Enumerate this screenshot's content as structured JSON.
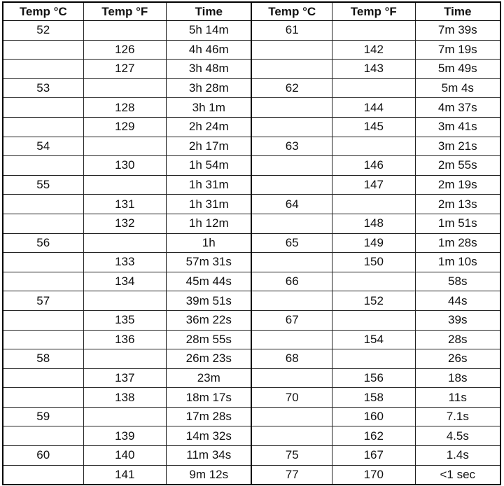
{
  "headers": [
    "Temp °C",
    "Temp °F",
    "Time",
    "Temp °C",
    "Temp °F",
    "Time"
  ],
  "rows": [
    [
      "52",
      "",
      "5h 14m",
      "61",
      "",
      "7m 39s"
    ],
    [
      "",
      "126",
      "4h 46m",
      "",
      "142",
      "7m 19s"
    ],
    [
      "",
      "127",
      "3h 48m",
      "",
      "143",
      "5m 49s"
    ],
    [
      "53",
      "",
      "3h 28m",
      "62",
      "",
      "5m 4s"
    ],
    [
      "",
      "128",
      "3h 1m",
      "",
      "144",
      "4m 37s"
    ],
    [
      "",
      "129",
      "2h 24m",
      "",
      "145",
      "3m 41s"
    ],
    [
      "54",
      "",
      "2h 17m",
      "63",
      "",
      "3m 21s"
    ],
    [
      "",
      "130",
      "1h 54m",
      "",
      "146",
      "2m 55s"
    ],
    [
      "55",
      "",
      "1h 31m",
      "",
      "147",
      "2m 19s"
    ],
    [
      "",
      "131",
      "1h 31m",
      "64",
      "",
      "2m 13s"
    ],
    [
      "",
      "132",
      "1h 12m",
      "",
      "148",
      "1m 51s"
    ],
    [
      "56",
      "",
      "1h",
      "65",
      "149",
      "1m 28s"
    ],
    [
      "",
      "133",
      "57m 31s",
      "",
      "150",
      "1m 10s"
    ],
    [
      "",
      "134",
      "45m 44s",
      "66",
      "",
      "58s"
    ],
    [
      "57",
      "",
      "39m 51s",
      "",
      "152",
      "44s"
    ],
    [
      "",
      "135",
      "36m 22s",
      "67",
      "",
      "39s"
    ],
    [
      "",
      "136",
      "28m 55s",
      "",
      "154",
      "28s"
    ],
    [
      "58",
      "",
      "26m 23s",
      "68",
      "",
      "26s"
    ],
    [
      "",
      "137",
      "23m",
      "",
      "156",
      "18s"
    ],
    [
      "",
      "138",
      "18m 17s",
      "70",
      "158",
      "11s"
    ],
    [
      "59",
      "",
      "17m 28s",
      "",
      "160",
      "7.1s"
    ],
    [
      "",
      "139",
      "14m 32s",
      "",
      "162",
      "4.5s"
    ],
    [
      "60",
      "140",
      "11m 34s",
      "75",
      "167",
      "1.4s"
    ],
    [
      "",
      "141",
      "9m 12s",
      "77",
      "170",
      "<1 sec"
    ]
  ]
}
